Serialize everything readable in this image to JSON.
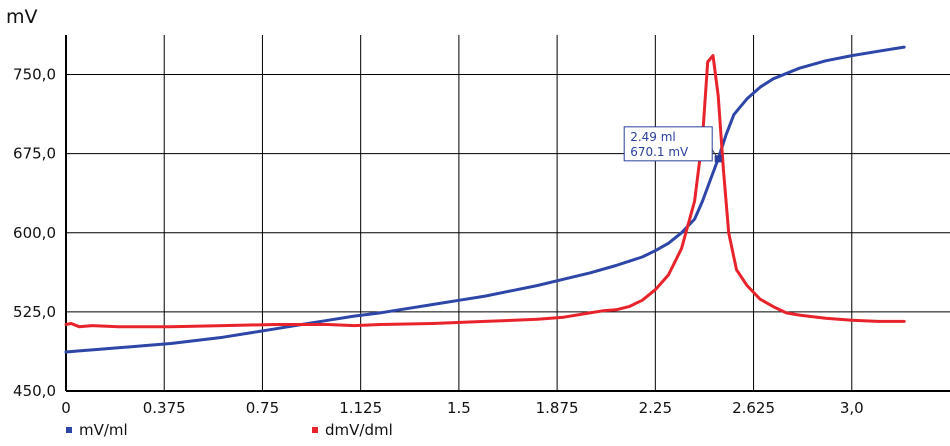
{
  "chart_data": {
    "type": "line",
    "title": "",
    "ylabel": "mV",
    "xlabel": "",
    "xlim": [
      0,
      3.375
    ],
    "ylim": [
      450,
      787.5
    ],
    "grid": true,
    "legend_placement": "bottom-left",
    "x_ticks": [
      0,
      0.375,
      0.75,
      1.125,
      1.5,
      1.875,
      2.25,
      2.625,
      3.0
    ],
    "x_tick_labels": [
      "0",
      "0.375",
      "0.75",
      "1.125",
      "1.5",
      "1.875",
      "2.25",
      "2.625",
      "3,0"
    ],
    "y_ticks": [
      450,
      525,
      600,
      675,
      750
    ],
    "y_tick_labels": [
      "450,0",
      "525,0",
      "600,0",
      "675,0",
      "750,0"
    ],
    "series": [
      {
        "name": "mV/ml",
        "color": "#2d46a8",
        "x": [
          0,
          0.05,
          0.1,
          0.2,
          0.3,
          0.4,
          0.5,
          0.6,
          0.7,
          0.8,
          0.9,
          1.0,
          1.1,
          1.2,
          1.3,
          1.4,
          1.5,
          1.6,
          1.7,
          1.8,
          1.9,
          2.0,
          2.1,
          2.2,
          2.25,
          2.3,
          2.35,
          2.4,
          2.43,
          2.46,
          2.49,
          2.52,
          2.55,
          2.6,
          2.65,
          2.7,
          2.8,
          2.9,
          3.0,
          3.1,
          3.2
        ],
        "y": [
          487,
          488,
          489,
          491,
          493,
          495,
          498,
          501,
          505,
          509,
          513,
          517,
          521,
          524,
          528,
          532,
          536,
          540,
          545,
          550,
          556,
          562,
          569,
          577,
          583,
          590,
          600,
          613,
          630,
          650,
          670,
          693,
          712,
          727,
          738,
          746,
          756,
          763,
          768,
          772,
          776
        ]
      },
      {
        "name": "dmV/dml",
        "color": "#e8232b",
        "x": [
          0,
          0.02,
          0.05,
          0.1,
          0.2,
          0.4,
          0.6,
          0.8,
          1.0,
          1.1,
          1.2,
          1.4,
          1.6,
          1.8,
          1.9,
          2.0,
          2.05,
          2.1,
          2.15,
          2.2,
          2.25,
          2.3,
          2.35,
          2.4,
          2.43,
          2.45,
          2.47,
          2.49,
          2.51,
          2.53,
          2.56,
          2.6,
          2.65,
          2.7,
          2.75,
          2.8,
          2.9,
          3.0,
          3.1,
          3.2
        ],
        "y": [
          513,
          514,
          511,
          512,
          511,
          511,
          512,
          513,
          513,
          512,
          513,
          514,
          516,
          518,
          520,
          524,
          526,
          527,
          530,
          536,
          546,
          560,
          585,
          630,
          690,
          762,
          768,
          730,
          660,
          600,
          565,
          550,
          537,
          530,
          524,
          522,
          519,
          517,
          516,
          516
        ]
      }
    ],
    "annotations": [
      {
        "x": 2.49,
        "y": 670.1,
        "lines": [
          "2.49 ml",
          "670.1 mV"
        ]
      }
    ]
  }
}
